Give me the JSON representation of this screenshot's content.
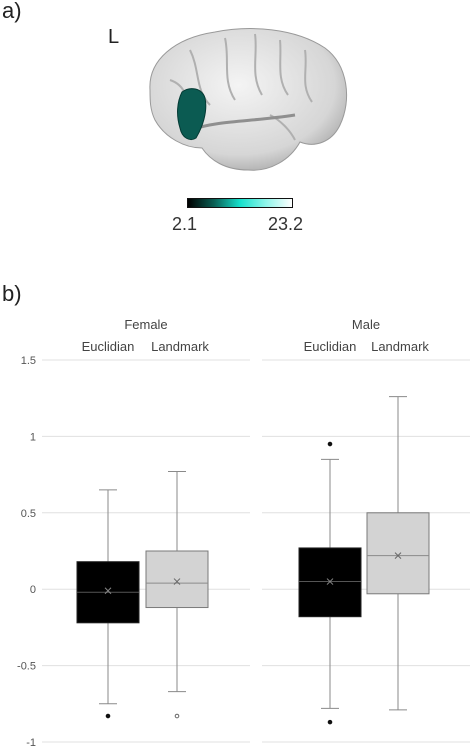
{
  "panel_labels": {
    "a": "a)",
    "b": "b)"
  },
  "brain": {
    "hemisphere": "L"
  },
  "colorbar": {
    "min": "2.1",
    "max": "23.2",
    "colors": [
      "#000000",
      "#0a5f54",
      "#16e0cc",
      "#8ff5ea",
      "#ffffff"
    ]
  },
  "chart_data": {
    "type": "box",
    "ylim": [
      -1,
      1.5
    ],
    "yticks": [
      "1.5",
      "1",
      "0.5",
      "0",
      "-0.5",
      "-1"
    ],
    "grid": true,
    "groups": [
      {
        "name": "Female",
        "boxes": [
          {
            "category": "Euclidian",
            "color": "#000000",
            "min": -0.75,
            "q1": -0.22,
            "median": -0.02,
            "q3": 0.18,
            "max": 0.65,
            "mean": -0.01,
            "outliers": [
              -0.83
            ]
          },
          {
            "category": "Landmark",
            "color": "#d3d3d3",
            "min": -0.67,
            "q1": -0.12,
            "median": 0.04,
            "q3": 0.25,
            "max": 0.77,
            "mean": 0.05,
            "outliers": [
              -0.83
            ]
          }
        ]
      },
      {
        "name": "Male",
        "boxes": [
          {
            "category": "Euclidian",
            "color": "#000000",
            "min": -0.78,
            "q1": -0.18,
            "median": 0.05,
            "q3": 0.27,
            "max": 0.85,
            "mean": 0.05,
            "outliers": [
              0.95,
              -0.87
            ]
          },
          {
            "category": "Landmark",
            "color": "#d3d3d3",
            "min": -0.79,
            "q1": -0.03,
            "median": 0.22,
            "q3": 0.5,
            "max": 1.26,
            "mean": 0.22,
            "outliers": []
          }
        ]
      }
    ]
  }
}
